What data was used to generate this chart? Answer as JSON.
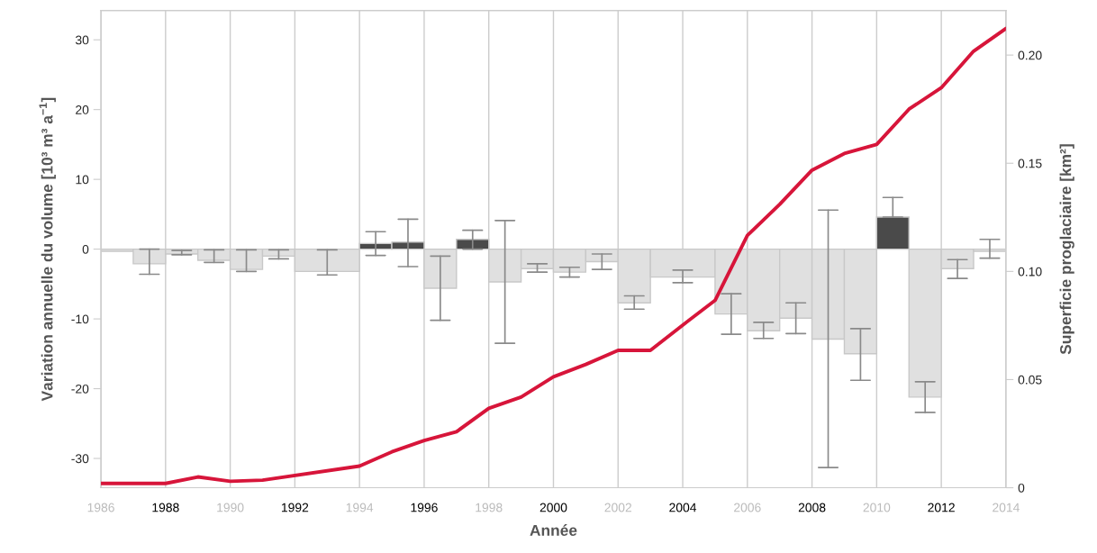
{
  "chart_data": {
    "type": "histogram",
    "xlabel": "Année",
    "ylabel": "Variation annuelle du volume [10³ m³ a$^{−1}$]",
    "y2label": "Superficie proglaciaire [km²]",
    "bins": [
      1986,
      1987,
      1988,
      1989,
      1990,
      1991,
      1992,
      1994,
      1995,
      1996,
      1997,
      1998,
      1999,
      2000,
      2001,
      2002,
      2003,
      2005,
      2006,
      2007,
      2008,
      2009,
      2010,
      2011,
      2012,
      2013,
      2014
    ],
    "series": [
      {
        "values": [
          -0.3,
          -2.1,
          -0.7,
          -1.6,
          -2.9,
          -1.0,
          -3.2,
          0.8,
          1.0,
          -5.6,
          1.4,
          -4.7,
          -2.8,
          -3.3,
          -1.8,
          -7.7,
          -4.0,
          -9.3,
          -11.7,
          -9.9,
          -12.9,
          -15.0,
          4.6,
          -21.2,
          -2.8,
          -0.3
        ],
        "colors": [
          "#e0e0e0",
          "#e0e0e0",
          "#e0e0e0",
          "#e0e0e0",
          "#e0e0e0",
          "#e0e0e0",
          "#e0e0e0",
          "#4a4a4a",
          "#4a4a4a",
          "#e0e0e0",
          "#4a4a4a",
          "#e0e0e0",
          "#e0e0e0",
          "#e0e0e0",
          "#e0e0e0",
          "#e0e0e0",
          "#e0e0e0",
          "#e0e0e0",
          "#e0e0e0",
          "#e0e0e0",
          "#e0e0e0",
          "#e0e0e0",
          "#4a4a4a",
          "#e0e0e0",
          "#e0e0e0",
          "#e0e0e0"
        ],
        "errors": [
          null,
          [
            -3.6,
            0
          ],
          [
            -0.8,
            -0.2
          ],
          [
            -1.9,
            -0.1
          ],
          [
            -3.2,
            -0.1
          ],
          [
            -1.4,
            -0.1
          ],
          [
            -3.7,
            -0.1
          ],
          [
            -0.9,
            2.5
          ],
          [
            -2.5,
            4.3
          ],
          [
            -10.2,
            -1.0
          ],
          [
            0,
            2.7
          ],
          [
            -13.5,
            4.1
          ],
          [
            -3.3,
            -2.1
          ],
          [
            -4.0,
            -2.6
          ],
          [
            -2.9,
            -0.7
          ],
          [
            -8.6,
            -6.7
          ],
          [
            -4.8,
            -3.0
          ],
          [
            -12.2,
            -6.4
          ],
          [
            -12.8,
            -10.5
          ],
          [
            -12.1,
            -7.7
          ],
          [
            -31.3,
            5.6
          ],
          [
            -18.8,
            -11.4
          ],
          [
            4.6,
            7.4
          ],
          [
            -23.4,
            -19.0
          ],
          [
            -4.2,
            -1.5
          ],
          [
            -1.3,
            1.4
          ]
        ]
      },
      {
        "type": "line",
        "axis": "y2",
        "color": "#d7153a",
        "x": [
          1986,
          1988,
          1989,
          1990,
          1991,
          1994,
          1995,
          1996,
          1997,
          1998,
          1999,
          2000,
          2001,
          2002,
          2003,
          2004,
          2005,
          2006,
          2007,
          2008,
          2009,
          2010,
          2011,
          2012,
          2013,
          2014
        ],
        "values": [
          0.002,
          0.002,
          0.005,
          0.003,
          0.0035,
          0.01,
          0.0166,
          0.0218,
          0.0259,
          0.0367,
          0.0419,
          0.0513,
          0.057,
          0.0635,
          0.0635,
          0.0752,
          0.0866,
          0.1166,
          0.131,
          0.1468,
          0.1545,
          0.1587,
          0.175,
          0.1849,
          0.2018,
          0.2123
        ]
      }
    ],
    "xlim": [
      1986,
      2014
    ],
    "xticks": [
      1986,
      1988,
      1990,
      1992,
      1994,
      1996,
      1998,
      2000,
      2002,
      2004,
      2006,
      2008,
      2010,
      2012,
      2014
    ],
    "ylim": [
      -34.2,
      34.2
    ],
    "yticks": [
      -30,
      -20,
      -10,
      0,
      10,
      20,
      30
    ],
    "y2lim": [
      0,
      0.2206
    ],
    "y2ticks": [
      0,
      {
        "value": 0.05,
        "label": "0.05"
      },
      {
        "value": 0.1,
        "label": "0.10"
      },
      {
        "value": 0.15,
        "label": "0.15"
      },
      {
        "value": 0.2,
        "label": "0.20"
      }
    ],
    "grid": "x"
  }
}
